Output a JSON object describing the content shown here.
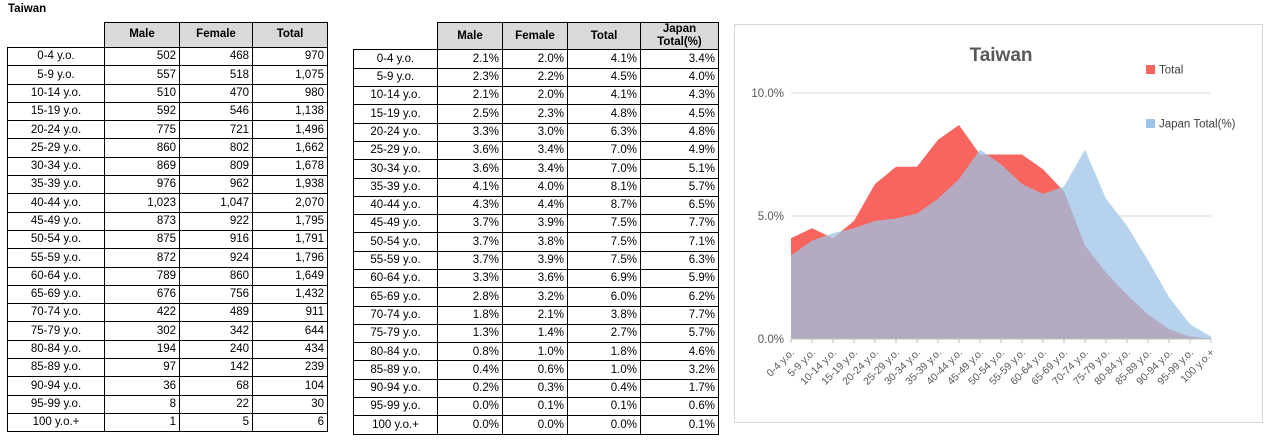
{
  "sheet": {
    "title": "Taiwan"
  },
  "tables": {
    "counts": {
      "headers": [
        "Male",
        "Female",
        "Total"
      ],
      "rows": [
        {
          "label": "0-4 y.o.",
          "values": [
            "502",
            "468",
            "970"
          ]
        },
        {
          "label": "5-9 y.o.",
          "values": [
            "557",
            "518",
            "1,075"
          ]
        },
        {
          "label": "10-14 y.o.",
          "values": [
            "510",
            "470",
            "980"
          ]
        },
        {
          "label": "15-19 y.o.",
          "values": [
            "592",
            "546",
            "1,138"
          ]
        },
        {
          "label": "20-24 y.o.",
          "values": [
            "775",
            "721",
            "1,496"
          ]
        },
        {
          "label": "25-29 y.o.",
          "values": [
            "860",
            "802",
            "1,662"
          ]
        },
        {
          "label": "30-34 y.o.",
          "values": [
            "869",
            "809",
            "1,678"
          ]
        },
        {
          "label": "35-39 y.o.",
          "values": [
            "976",
            "962",
            "1,938"
          ]
        },
        {
          "label": "40-44 y.o.",
          "values": [
            "1,023",
            "1,047",
            "2,070"
          ]
        },
        {
          "label": "45-49 y.o.",
          "values": [
            "873",
            "922",
            "1,795"
          ]
        },
        {
          "label": "50-54 y.o.",
          "values": [
            "875",
            "916",
            "1,791"
          ]
        },
        {
          "label": "55-59 y.o.",
          "values": [
            "872",
            "924",
            "1,796"
          ]
        },
        {
          "label": "60-64 y.o.",
          "values": [
            "789",
            "860",
            "1,649"
          ]
        },
        {
          "label": "65-69 y.o.",
          "values": [
            "676",
            "756",
            "1,432"
          ]
        },
        {
          "label": "70-74 y.o.",
          "values": [
            "422",
            "489",
            "911"
          ]
        },
        {
          "label": "75-79 y.o.",
          "values": [
            "302",
            "342",
            "644"
          ]
        },
        {
          "label": "80-84 y.o.",
          "values": [
            "194",
            "240",
            "434"
          ]
        },
        {
          "label": "85-89 y.o.",
          "values": [
            "97",
            "142",
            "239"
          ]
        },
        {
          "label": "90-94 y.o.",
          "values": [
            "36",
            "68",
            "104"
          ]
        },
        {
          "label": "95-99 y.o.",
          "values": [
            "8",
            "22",
            "30"
          ]
        },
        {
          "label": "100 y.o.+",
          "values": [
            "1",
            "5",
            "6"
          ]
        }
      ]
    },
    "percents": {
      "headers": [
        "Male",
        "Female",
        "Total",
        "Japan Total(%)"
      ],
      "rows": [
        {
          "label": "0-4 y.o.",
          "values": [
            "2.1%",
            "2.0%",
            "4.1%",
            "3.4%"
          ]
        },
        {
          "label": "5-9 y.o.",
          "values": [
            "2.3%",
            "2.2%",
            "4.5%",
            "4.0%"
          ]
        },
        {
          "label": "10-14 y.o.",
          "values": [
            "2.1%",
            "2.0%",
            "4.1%",
            "4.3%"
          ]
        },
        {
          "label": "15-19 y.o.",
          "values": [
            "2.5%",
            "2.3%",
            "4.8%",
            "4.5%"
          ]
        },
        {
          "label": "20-24 y.o.",
          "values": [
            "3.3%",
            "3.0%",
            "6.3%",
            "4.8%"
          ]
        },
        {
          "label": "25-29 y.o.",
          "values": [
            "3.6%",
            "3.4%",
            "7.0%",
            "4.9%"
          ]
        },
        {
          "label": "30-34 y.o.",
          "values": [
            "3.6%",
            "3.4%",
            "7.0%",
            "5.1%"
          ]
        },
        {
          "label": "35-39 y.o.",
          "values": [
            "4.1%",
            "4.0%",
            "8.1%",
            "5.7%"
          ]
        },
        {
          "label": "40-44 y.o.",
          "values": [
            "4.3%",
            "4.4%",
            "8.7%",
            "6.5%"
          ]
        },
        {
          "label": "45-49 y.o.",
          "values": [
            "3.7%",
            "3.9%",
            "7.5%",
            "7.7%"
          ]
        },
        {
          "label": "50-54 y.o.",
          "values": [
            "3.7%",
            "3.8%",
            "7.5%",
            "7.1%"
          ]
        },
        {
          "label": "55-59 y.o.",
          "values": [
            "3.7%",
            "3.9%",
            "7.5%",
            "6.3%"
          ]
        },
        {
          "label": "60-64 y.o.",
          "values": [
            "3.3%",
            "3.6%",
            "6.9%",
            "5.9%"
          ]
        },
        {
          "label": "65-69 y.o.",
          "values": [
            "2.8%",
            "3.2%",
            "6.0%",
            "6.2%"
          ]
        },
        {
          "label": "70-74 y.o.",
          "values": [
            "1.8%",
            "2.1%",
            "3.8%",
            "7.7%"
          ]
        },
        {
          "label": "75-79 y.o.",
          "values": [
            "1.3%",
            "1.4%",
            "2.7%",
            "5.7%"
          ]
        },
        {
          "label": "80-84 y.o.",
          "values": [
            "0.8%",
            "1.0%",
            "1.8%",
            "4.6%"
          ]
        },
        {
          "label": "85-89 y.o.",
          "values": [
            "0.4%",
            "0.6%",
            "1.0%",
            "3.2%"
          ]
        },
        {
          "label": "90-94 y.o.",
          "values": [
            "0.2%",
            "0.3%",
            "0.4%",
            "1.7%"
          ]
        },
        {
          "label": "95-99 y.o.",
          "values": [
            "0.0%",
            "0.1%",
            "0.1%",
            "0.6%"
          ]
        },
        {
          "label": "100 y.o.+",
          "values": [
            "0.0%",
            "0.0%",
            "0.0%",
            "0.1%"
          ]
        }
      ]
    }
  },
  "chart_data": {
    "type": "area",
    "title": "Taiwan",
    "title_color": "#595959",
    "categories": [
      "0-4 y.o.",
      "5-9 y.o.",
      "10-14 y.o.",
      "15-19 y.o.",
      "20-24 y.o.",
      "25-29 y.o.",
      "30-34 y.o.",
      "35-39 y.o.",
      "40-44 y.o.",
      "45-49 y.o.",
      "50-54 y.o.",
      "55-59 y.o.",
      "60-64 y.o.",
      "65-69 y.o.",
      "70-74 y.o.",
      "75-79 y.o.",
      "80-84 y.o.",
      "85-89 y.o.",
      "90-94 y.o.",
      "95-99 y.o.",
      "100 y.o.+"
    ],
    "series": [
      {
        "name": "Total",
        "color": "#f7655e",
        "fill_opacity": 1,
        "values": [
          4.1,
          4.5,
          4.1,
          4.8,
          6.3,
          7.0,
          7.0,
          8.1,
          8.7,
          7.5,
          7.5,
          7.5,
          6.9,
          6.0,
          3.8,
          2.7,
          1.8,
          1.0,
          0.4,
          0.1,
          0.0
        ]
      },
      {
        "name": "Japan Total(%)",
        "color": "#9dc3e6",
        "fill_opacity": 0.75,
        "values": [
          3.4,
          4.0,
          4.3,
          4.5,
          4.8,
          4.9,
          5.1,
          5.7,
          6.5,
          7.7,
          7.1,
          6.3,
          5.9,
          6.2,
          7.7,
          5.7,
          4.6,
          3.2,
          1.7,
          0.6,
          0.1
        ]
      }
    ],
    "ylim": [
      0,
      10
    ],
    "yticks": [
      {
        "label": "0.0%",
        "value": 0
      },
      {
        "label": "5.0%",
        "value": 5
      },
      {
        "label": "10.0%",
        "value": 10
      }
    ],
    "grid": true,
    "legend_position": "right",
    "axis_text_color": "#595959",
    "gridline_color": "#d9d9d9",
    "axis_line_color": "#bfbfbf"
  }
}
